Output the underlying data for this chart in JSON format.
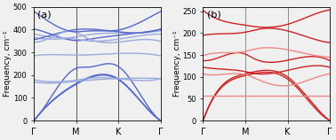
{
  "title_a": "(a)",
  "title_b": "(b)",
  "ylabel_a": "Frequency, cm⁻¹",
  "ylabel_b": "Frequency, cm⁻¹",
  "xtick_labels": [
    "Γ",
    "M",
    "K",
    "Γ"
  ],
  "ylim_a": [
    0,
    500
  ],
  "ylim_b": [
    0,
    260
  ],
  "yticks_a": [
    0,
    100,
    200,
    300,
    400,
    500
  ],
  "yticks_b": [
    0,
    50,
    100,
    150,
    200,
    250
  ],
  "color_a": "#5566cc",
  "color_a_light": "#99aadd",
  "color_b": "#cc2222",
  "color_b_light": "#ee8888",
  "lw": 1.0,
  "background": "#f0f0f0"
}
